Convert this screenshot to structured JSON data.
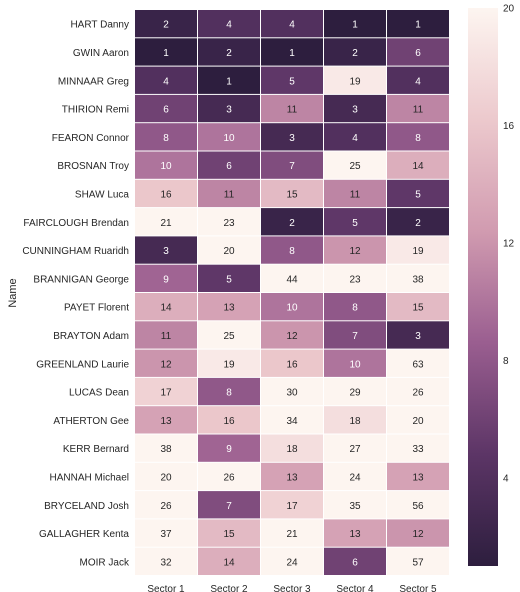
{
  "chart_data": {
    "type": "heatmap",
    "ylabel": "Name",
    "xlabel": "",
    "columns": [
      "Sector 1",
      "Sector 2",
      "Sector 3",
      "Sector 4",
      "Sector 5"
    ],
    "rows": [
      {
        "name": "HART Danny",
        "values": [
          2,
          4,
          4,
          1,
          1
        ]
      },
      {
        "name": "GWIN Aaron",
        "values": [
          1,
          2,
          1,
          2,
          6
        ]
      },
      {
        "name": "MINNAAR Greg",
        "values": [
          4,
          1,
          5,
          19,
          4
        ]
      },
      {
        "name": "THIRION Remi",
        "values": [
          6,
          3,
          11,
          3,
          11
        ]
      },
      {
        "name": "FEARON Connor",
        "values": [
          8,
          10,
          3,
          4,
          8
        ]
      },
      {
        "name": "BROSNAN Troy",
        "values": [
          10,
          6,
          7,
          25,
          14
        ]
      },
      {
        "name": "SHAW Luca",
        "values": [
          16,
          11,
          15,
          11,
          5
        ]
      },
      {
        "name": "FAIRCLOUGH Brendan",
        "values": [
          21,
          23,
          2,
          5,
          2
        ]
      },
      {
        "name": "CUNNINGHAM Ruaridh",
        "values": [
          3,
          20,
          8,
          12,
          19
        ]
      },
      {
        "name": "BRANNIGAN George",
        "values": [
          9,
          5,
          44,
          23,
          38
        ]
      },
      {
        "name": "PAYET Florent",
        "values": [
          14,
          13,
          10,
          8,
          15
        ]
      },
      {
        "name": "BRAYTON Adam",
        "values": [
          11,
          25,
          12,
          7,
          3
        ]
      },
      {
        "name": "GREENLAND Laurie",
        "values": [
          12,
          19,
          16,
          10,
          63
        ]
      },
      {
        "name": "LUCAS Dean",
        "values": [
          17,
          8,
          30,
          29,
          26
        ]
      },
      {
        "name": "ATHERTON Gee",
        "values": [
          13,
          16,
          34,
          18,
          20
        ]
      },
      {
        "name": "KERR Bernard",
        "values": [
          38,
          9,
          18,
          27,
          33
        ]
      },
      {
        "name": "HANNAH Michael",
        "values": [
          20,
          26,
          13,
          24,
          13
        ]
      },
      {
        "name": "BRYCELAND Josh",
        "values": [
          26,
          7,
          17,
          35,
          56
        ]
      },
      {
        "name": "GALLAGHER Kenta",
        "values": [
          37,
          15,
          21,
          13,
          12
        ]
      },
      {
        "name": "MOIR Jack",
        "values": [
          32,
          14,
          24,
          6,
          57
        ]
      }
    ],
    "colorbar": {
      "vmin": 1,
      "vmax": 20,
      "ticks": [
        4,
        8,
        12,
        16,
        20
      ],
      "colors": [
        "#2d1e3e",
        "#5c3566",
        "#9a5e90",
        "#d19bb0",
        "#ecc9cd",
        "#fdf5f0"
      ]
    },
    "grid": false,
    "legend": "colorbar-right"
  }
}
